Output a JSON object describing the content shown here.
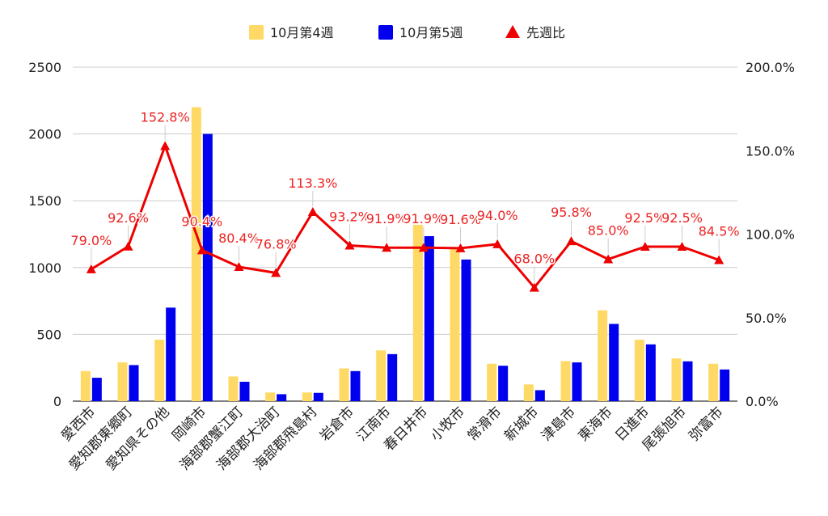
{
  "chart_data": {
    "type": "bar",
    "title": "",
    "xlabel": "",
    "ylabel": "",
    "ylim": [
      0,
      2500
    ],
    "y2lim": [
      0,
      2.0
    ],
    "grid": true,
    "legend_position": "top-center",
    "categories": [
      "愛西市",
      "愛知郡東郷町",
      "愛知県その他",
      "岡崎市",
      "海部郡蟹江町",
      "海部郡大治町",
      "海部郡飛島村",
      "岩倉市",
      "江南市",
      "春日井市",
      "小牧市",
      "常滑市",
      "新城市",
      "津島市",
      "東海市",
      "日進市",
      "尾張旭市",
      "弥富市"
    ],
    "y_ticks": [
      "0",
      "500",
      "1000",
      "1500",
      "2000",
      "2500"
    ],
    "y2_ticks": [
      "0.0%",
      "50.0%",
      "100.0%",
      "150.0%",
      "200.0%"
    ],
    "series": [
      {
        "name": "10月第4週",
        "type": "bar",
        "axis": "left",
        "color": "#ffd966",
        "values": [
          225,
          290,
          460,
          2200,
          185,
          65,
          65,
          245,
          380,
          1320,
          1150,
          280,
          125,
          300,
          680,
          460,
          320,
          280
        ]
      },
      {
        "name": "10月第5週",
        "type": "bar",
        "axis": "left",
        "color": "#0000ee",
        "values": [
          175,
          270,
          700,
          2000,
          145,
          52,
          62,
          225,
          352,
          1235,
          1060,
          265,
          82,
          290,
          578,
          425,
          298,
          237
        ]
      },
      {
        "name": "先週比",
        "type": "line",
        "axis": "right",
        "color": "#ee0000",
        "marker": "triangle",
        "values": [
          0.79,
          0.926,
          1.528,
          0.904,
          0.804,
          0.768,
          1.133,
          0.932,
          0.919,
          0.919,
          0.916,
          0.94,
          0.68,
          0.958,
          0.85,
          0.925,
          0.925,
          0.845
        ],
        "labels": [
          "79.0%",
          "92.6%",
          "152.8%",
          "90.4%",
          "80.4%",
          "76.8%",
          "113.3%",
          "93.2%",
          "91.9%",
          "91.9%",
          "91.6%",
          "94.0%",
          "68.0%",
          "95.8%",
          "85.0%",
          "92.5%",
          "92.5%",
          "84.5%"
        ]
      }
    ]
  }
}
